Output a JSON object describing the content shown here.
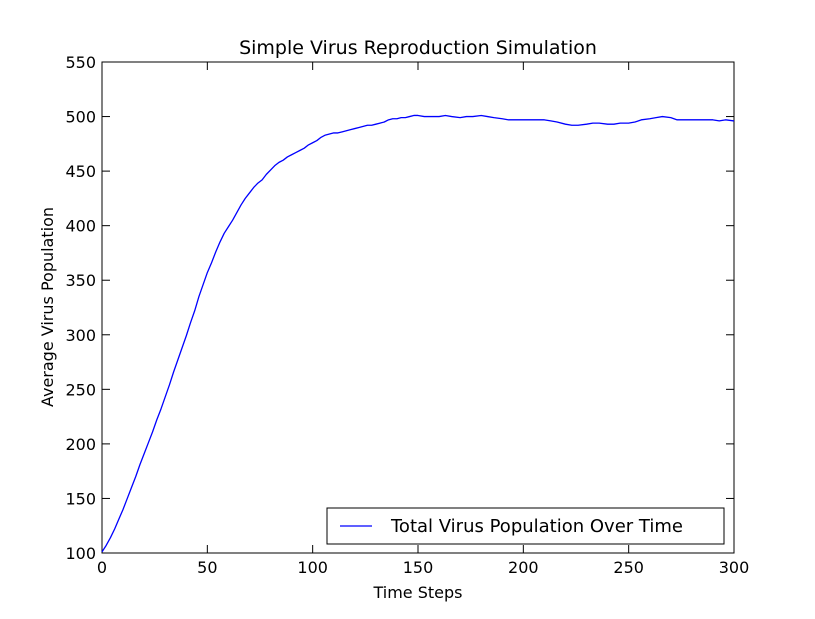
{
  "chart_data": {
    "type": "line",
    "title": "Simple Virus Reproduction Simulation",
    "xlabel": "Time Steps",
    "ylabel": "Average Virus Population",
    "xlim": [
      0,
      300
    ],
    "ylim": [
      100,
      550
    ],
    "xticks": [
      0,
      50,
      100,
      150,
      200,
      250,
      300
    ],
    "yticks": [
      100,
      150,
      200,
      250,
      300,
      350,
      400,
      450,
      500,
      550
    ],
    "grid": false,
    "legend_position": "lower-right",
    "series": [
      {
        "name": "Total Virus Population Over Time",
        "color": "#0000ff",
        "points": [
          [
            0,
            101
          ],
          [
            2,
            107
          ],
          [
            4,
            114
          ],
          [
            6,
            122
          ],
          [
            8,
            131
          ],
          [
            10,
            140
          ],
          [
            12,
            150
          ],
          [
            14,
            160
          ],
          [
            16,
            170
          ],
          [
            18,
            181
          ],
          [
            20,
            191
          ],
          [
            22,
            201
          ],
          [
            24,
            211
          ],
          [
            26,
            222
          ],
          [
            28,
            232
          ],
          [
            30,
            243
          ],
          [
            32,
            254
          ],
          [
            34,
            266
          ],
          [
            36,
            277
          ],
          [
            38,
            288
          ],
          [
            40,
            299
          ],
          [
            42,
            311
          ],
          [
            44,
            322
          ],
          [
            46,
            335
          ],
          [
            48,
            346
          ],
          [
            50,
            357
          ],
          [
            52,
            366
          ],
          [
            54,
            376
          ],
          [
            56,
            385
          ],
          [
            58,
            393
          ],
          [
            60,
            399
          ],
          [
            62,
            405
          ],
          [
            64,
            412
          ],
          [
            66,
            419
          ],
          [
            68,
            425
          ],
          [
            70,
            430
          ],
          [
            72,
            435
          ],
          [
            74,
            439
          ],
          [
            76,
            442
          ],
          [
            78,
            447
          ],
          [
            80,
            451
          ],
          [
            82,
            455
          ],
          [
            84,
            458
          ],
          [
            86,
            460
          ],
          [
            88,
            463
          ],
          [
            90,
            465
          ],
          [
            92,
            467
          ],
          [
            94,
            469
          ],
          [
            96,
            471
          ],
          [
            98,
            474
          ],
          [
            100,
            476
          ],
          [
            102,
            478
          ],
          [
            104,
            481
          ],
          [
            106,
            483
          ],
          [
            108,
            484
          ],
          [
            110,
            485
          ],
          [
            112,
            485
          ],
          [
            114,
            486
          ],
          [
            116,
            487
          ],
          [
            118,
            488
          ],
          [
            120,
            489
          ],
          [
            122,
            490
          ],
          [
            124,
            491
          ],
          [
            126,
            492
          ],
          [
            128,
            492
          ],
          [
            130,
            493
          ],
          [
            132,
            494
          ],
          [
            134,
            495
          ],
          [
            136,
            497
          ],
          [
            138,
            498
          ],
          [
            140,
            498
          ],
          [
            142,
            499
          ],
          [
            144,
            499
          ],
          [
            146,
            500
          ],
          [
            148,
            501
          ],
          [
            150,
            501
          ],
          [
            153,
            500
          ],
          [
            156,
            500
          ],
          [
            160,
            500
          ],
          [
            163,
            501
          ],
          [
            166,
            500
          ],
          [
            170,
            499
          ],
          [
            173,
            500
          ],
          [
            176,
            500
          ],
          [
            180,
            501
          ],
          [
            183,
            500
          ],
          [
            186,
            499
          ],
          [
            190,
            498
          ],
          [
            193,
            497
          ],
          [
            196,
            497
          ],
          [
            200,
            497
          ],
          [
            203,
            497
          ],
          [
            206,
            497
          ],
          [
            210,
            497
          ],
          [
            213,
            496
          ],
          [
            216,
            495
          ],
          [
            220,
            493
          ],
          [
            223,
            492
          ],
          [
            226,
            492
          ],
          [
            230,
            493
          ],
          [
            233,
            494
          ],
          [
            236,
            494
          ],
          [
            240,
            493
          ],
          [
            243,
            493
          ],
          [
            246,
            494
          ],
          [
            250,
            494
          ],
          [
            253,
            495
          ],
          [
            256,
            497
          ],
          [
            260,
            498
          ],
          [
            263,
            499
          ],
          [
            266,
            500
          ],
          [
            270,
            499
          ],
          [
            273,
            497
          ],
          [
            276,
            497
          ],
          [
            280,
            497
          ],
          [
            283,
            497
          ],
          [
            286,
            497
          ],
          [
            290,
            497
          ],
          [
            293,
            496
          ],
          [
            296,
            497
          ],
          [
            300,
            496
          ]
        ]
      }
    ]
  }
}
